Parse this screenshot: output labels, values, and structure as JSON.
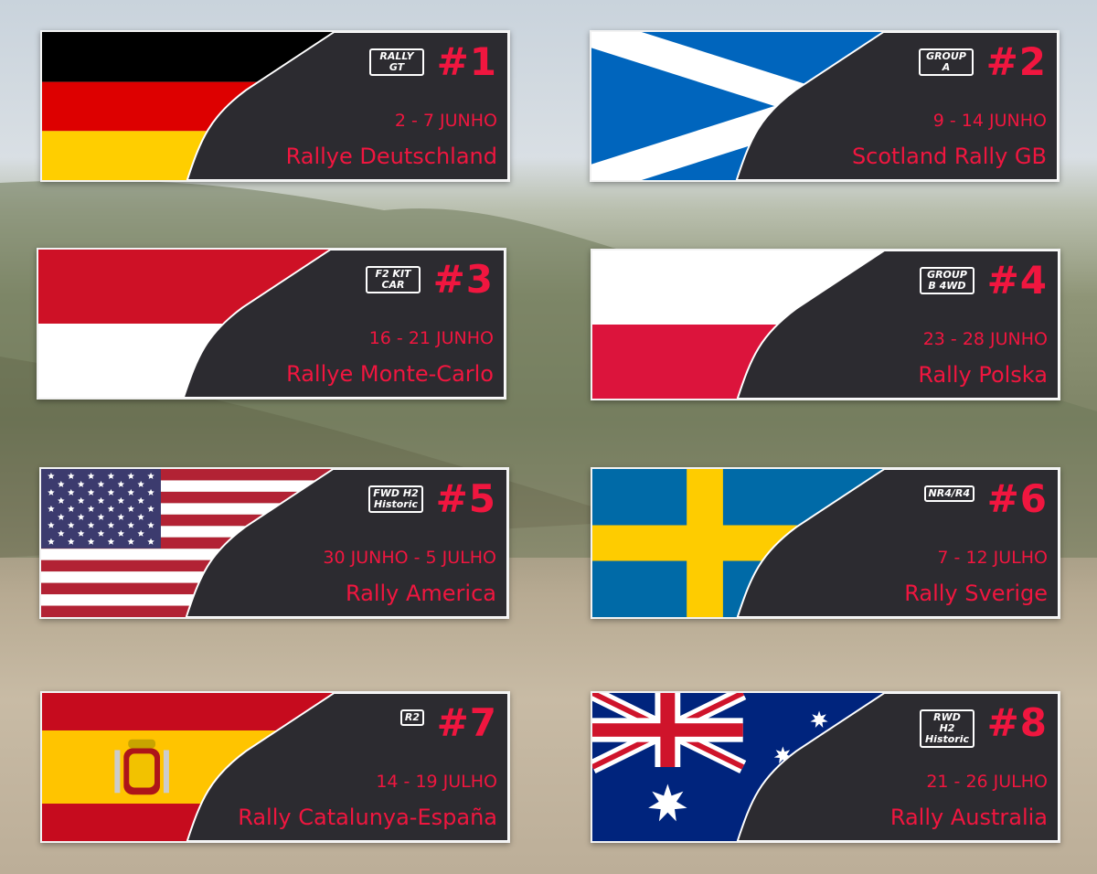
{
  "colors": {
    "accent": "#f0163f",
    "panel": "#2c2b30"
  },
  "rallies": [
    {
      "number": "#1",
      "logo": "RALLY GT",
      "date": "2 - 7 JUNHO",
      "name": "Rallye Deutschland",
      "flag": "germany"
    },
    {
      "number": "#2",
      "logo": "GROUP A",
      "date": "9 - 14 JUNHO",
      "name": "Scotland Rally GB",
      "flag": "scotland"
    },
    {
      "number": "#3",
      "logo": "F2 KIT CAR",
      "date": "16 - 21 JUNHO",
      "name": "Rallye Monte-Carlo",
      "flag": "monaco"
    },
    {
      "number": "#4",
      "logo": "GROUP B 4WD",
      "date": "23 - 28 JUNHO",
      "name": "Rally Polska",
      "flag": "poland"
    },
    {
      "number": "#5",
      "logo": "FWD H2 Historic",
      "date": "30 JUNHO - 5 JULHO",
      "name": "Rally America",
      "flag": "usa"
    },
    {
      "number": "#6",
      "logo": "NR4/R4",
      "date": "7 - 12 JULHO",
      "name": "Rally Sverige",
      "flag": "sweden"
    },
    {
      "number": "#7",
      "logo": "R2",
      "date": "14 - 19 JULHO",
      "name": "Rally Catalunya-España",
      "flag": "spain"
    },
    {
      "number": "#8",
      "logo": "RWD H2 Historic",
      "date": "21 - 26 JULHO",
      "name": "Rally Australia",
      "flag": "australia"
    }
  ]
}
